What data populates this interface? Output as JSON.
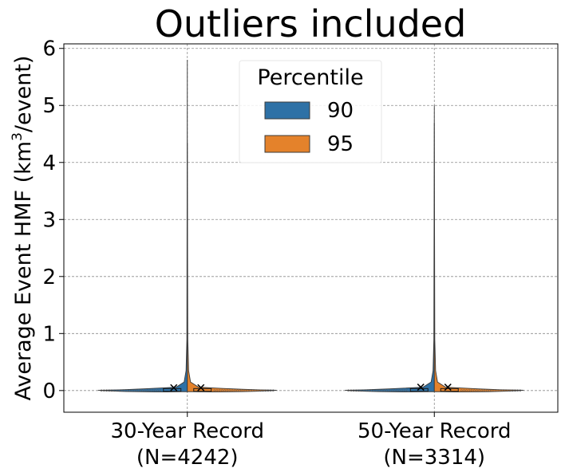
{
  "chart_data": {
    "type": "violin",
    "title": "Outliers included",
    "xlabel": "",
    "ylabel": "Average Event HMF (km³/event)",
    "ylabel_parts": {
      "pre": "Average Event HMF (km",
      "sup": "3",
      "post": "/event)"
    },
    "categories": [
      {
        "label_line1": "30-Year Record",
        "label_line2": "(N=4242)"
      },
      {
        "label_line1": "50-Year Record",
        "label_line2": "(N=3314)"
      }
    ],
    "hue_title": "Percentile",
    "series": [
      {
        "name": "90",
        "color": "#2e71a6",
        "max": [
          5.8,
          5.0
        ],
        "mean": [
          0.05,
          0.06
        ]
      },
      {
        "name": "95",
        "color": "#e4822b",
        "max": [
          4.35,
          4.7
        ],
        "mean": [
          0.05,
          0.06
        ]
      }
    ],
    "yticks": [
      0,
      1,
      2,
      3,
      4,
      5,
      6
    ],
    "ylim": [
      -0.38,
      6.08
    ],
    "grid": true,
    "legend_position": "upper-center"
  }
}
